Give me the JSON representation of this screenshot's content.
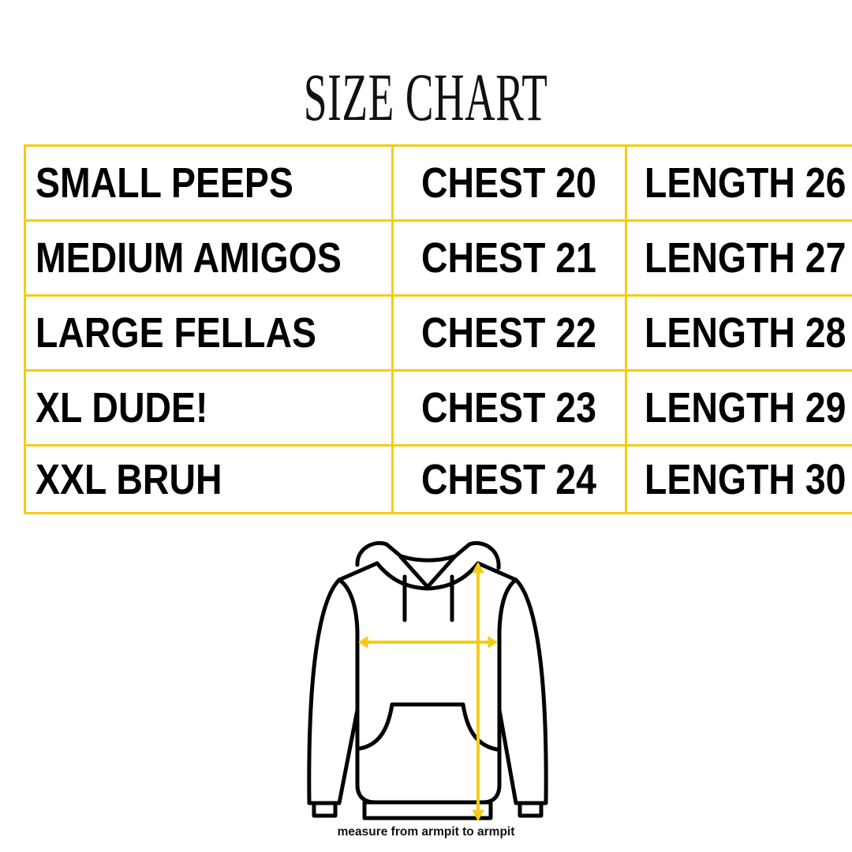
{
  "title": "SIZE CHART",
  "rows": [
    {
      "size": "SMALL PEEPS",
      "chest": "CHEST 20",
      "length": "LENGTH 26"
    },
    {
      "size": "MEDIUM AMIGOS",
      "chest": "CHEST 21",
      "length": "LENGTH 27"
    },
    {
      "size": "LARGE FELLAS",
      "chest": "CHEST 22",
      "length": "LENGTH 28"
    },
    {
      "size": "XL DUDE!",
      "chest": "CHEST 23",
      "length": "LENGTH 29"
    },
    {
      "size": "XXL BRUH",
      "chest": "CHEST 24",
      "length": "LENGTH 30"
    }
  ],
  "caption": "measure from armpit to armpit",
  "colors": {
    "accent": "#f5cc15",
    "text": "#000000"
  },
  "illustration": "hoodie-outline-with-measurement-arrows"
}
